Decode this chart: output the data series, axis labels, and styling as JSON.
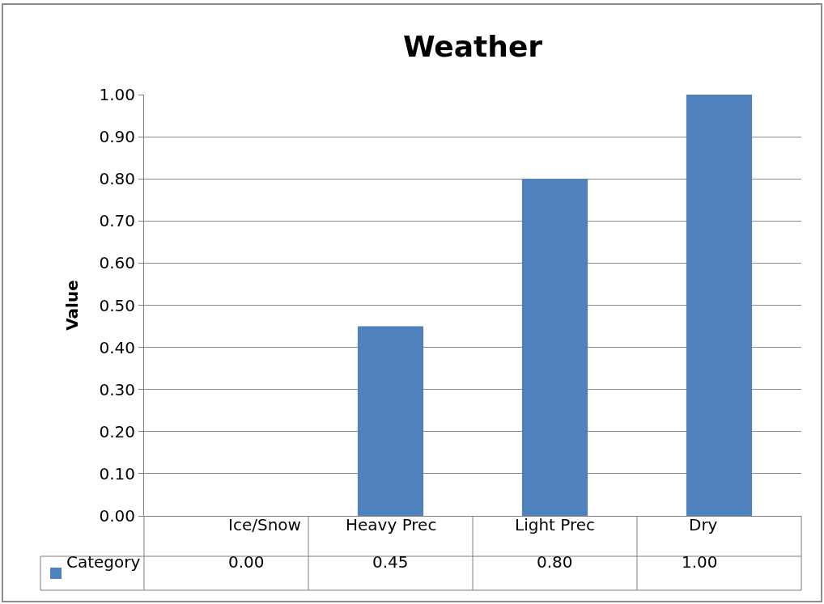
{
  "chart_data": {
    "type": "bar",
    "title": "Weather",
    "ylabel": "Value",
    "categories": [
      "Ice/Snow",
      "Heavy Prec",
      "Light Prec",
      "Dry"
    ],
    "series": [
      {
        "name": "Category",
        "color": "#4f81bd",
        "values": [
          0.0,
          0.45,
          0.8,
          1.0
        ],
        "value_labels": [
          "0.00",
          "0.45",
          "0.80",
          "1.00"
        ]
      }
    ],
    "ylim": [
      0,
      1.0
    ],
    "yticks": [
      {
        "value": 0,
        "label": "0.00"
      },
      {
        "value": 0.1,
        "label": "0.10"
      },
      {
        "value": 0.2,
        "label": "0.20"
      },
      {
        "value": 0.3,
        "label": "0.30"
      },
      {
        "value": 0.4,
        "label": "0.40"
      },
      {
        "value": 0.5,
        "label": "0.50"
      },
      {
        "value": 0.6,
        "label": "0.60"
      },
      {
        "value": 0.7,
        "label": "0.70"
      },
      {
        "value": 0.8,
        "label": "0.80"
      },
      {
        "value": 0.9,
        "label": "0.90"
      },
      {
        "value": 1.0,
        "label": "1.00"
      }
    ],
    "grid": "y",
    "legend": "bottom left"
  }
}
